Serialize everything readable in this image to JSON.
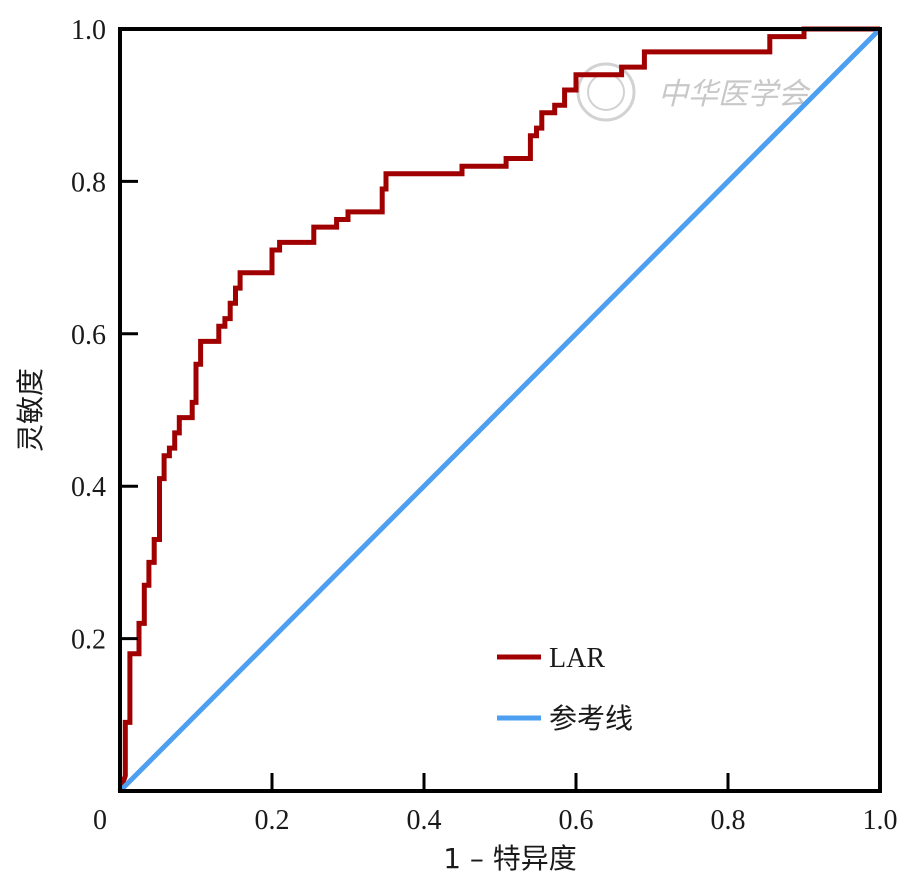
{
  "chart_data": {
    "type": "line",
    "title": "",
    "xlabel": "1 – 特异度",
    "ylabel": "灵敏度",
    "xlim": [
      0,
      1
    ],
    "ylim": [
      0,
      1
    ],
    "x_ticks": [
      "0",
      "0.2",
      "0.4",
      "0.6",
      "0.8",
      "1.0"
    ],
    "y_ticks": [
      "0.2",
      "0.4",
      "0.6",
      "0.8",
      "1.0"
    ],
    "grid": false,
    "legend_position": "bottom-right",
    "watermark_text": "中华医学会",
    "series": [
      {
        "name": "LAR",
        "color": "#a00000",
        "step": true,
        "points": [
          [
            0.0,
            0.0
          ],
          [
            0.007,
            0.02
          ],
          [
            0.007,
            0.09
          ],
          [
            0.013,
            0.09
          ],
          [
            0.013,
            0.18
          ],
          [
            0.025,
            0.18
          ],
          [
            0.025,
            0.22
          ],
          [
            0.032,
            0.22
          ],
          [
            0.032,
            0.27
          ],
          [
            0.038,
            0.27
          ],
          [
            0.038,
            0.3
          ],
          [
            0.045,
            0.3
          ],
          [
            0.045,
            0.33
          ],
          [
            0.052,
            0.33
          ],
          [
            0.052,
            0.41
          ],
          [
            0.058,
            0.41
          ],
          [
            0.058,
            0.44
          ],
          [
            0.065,
            0.44
          ],
          [
            0.065,
            0.45
          ],
          [
            0.072,
            0.45
          ],
          [
            0.072,
            0.47
          ],
          [
            0.078,
            0.47
          ],
          [
            0.078,
            0.49
          ],
          [
            0.095,
            0.49
          ],
          [
            0.095,
            0.51
          ],
          [
            0.1,
            0.51
          ],
          [
            0.1,
            0.56
          ],
          [
            0.106,
            0.56
          ],
          [
            0.106,
            0.59
          ],
          [
            0.13,
            0.59
          ],
          [
            0.13,
            0.61
          ],
          [
            0.138,
            0.61
          ],
          [
            0.138,
            0.62
          ],
          [
            0.145,
            0.62
          ],
          [
            0.145,
            0.64
          ],
          [
            0.152,
            0.64
          ],
          [
            0.152,
            0.66
          ],
          [
            0.158,
            0.66
          ],
          [
            0.158,
            0.68
          ],
          [
            0.2,
            0.68
          ],
          [
            0.2,
            0.71
          ],
          [
            0.21,
            0.71
          ],
          [
            0.21,
            0.72
          ],
          [
            0.255,
            0.72
          ],
          [
            0.255,
            0.74
          ],
          [
            0.285,
            0.74
          ],
          [
            0.285,
            0.75
          ],
          [
            0.3,
            0.75
          ],
          [
            0.3,
            0.76
          ],
          [
            0.345,
            0.76
          ],
          [
            0.345,
            0.79
          ],
          [
            0.35,
            0.79
          ],
          [
            0.35,
            0.81
          ],
          [
            0.45,
            0.81
          ],
          [
            0.45,
            0.82
          ],
          [
            0.508,
            0.82
          ],
          [
            0.508,
            0.83
          ],
          [
            0.54,
            0.83
          ],
          [
            0.54,
            0.86
          ],
          [
            0.548,
            0.86
          ],
          [
            0.548,
            0.87
          ],
          [
            0.555,
            0.87
          ],
          [
            0.555,
            0.89
          ],
          [
            0.572,
            0.89
          ],
          [
            0.572,
            0.9
          ],
          [
            0.585,
            0.9
          ],
          [
            0.585,
            0.92
          ],
          [
            0.6,
            0.92
          ],
          [
            0.6,
            0.94
          ],
          [
            0.66,
            0.94
          ],
          [
            0.66,
            0.95
          ],
          [
            0.69,
            0.95
          ],
          [
            0.69,
            0.97
          ],
          [
            0.855,
            0.97
          ],
          [
            0.855,
            0.99
          ],
          [
            0.9,
            0.99
          ],
          [
            0.9,
            1.0
          ],
          [
            1.0,
            1.0
          ]
        ]
      },
      {
        "name": "参考线",
        "color": "#4d9ff2",
        "step": false,
        "points": [
          [
            0.0,
            0.0
          ],
          [
            1.0,
            1.0
          ]
        ]
      }
    ]
  }
}
